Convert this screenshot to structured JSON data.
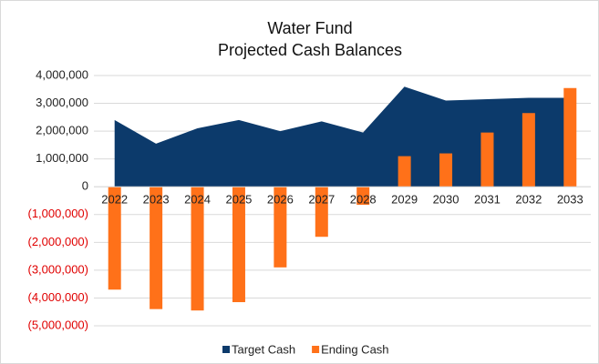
{
  "chart_data": {
    "type": "area-bar",
    "title": [
      "Water Fund",
      "Projected Cash Balances"
    ],
    "categories": [
      "2022",
      "2023",
      "2024",
      "2025",
      "2026",
      "2027",
      "2028",
      "2029",
      "2030",
      "2031",
      "2032",
      "2033"
    ],
    "series": [
      {
        "name": "Target Cash",
        "color": "#0c3a6b",
        "kind": "area",
        "values": [
          2400000,
          1550000,
          2100000,
          2400000,
          2000000,
          2350000,
          1950000,
          3600000,
          3100000,
          3150000,
          3200000,
          3200000
        ]
      },
      {
        "name": "Ending Cash",
        "color": "#ff7119",
        "kind": "bar",
        "values": [
          -3700000,
          -4400000,
          -4450000,
          -4150000,
          -2900000,
          -1800000,
          -650000,
          1100000,
          1200000,
          1950000,
          2650000,
          3550000
        ]
      }
    ],
    "ylim": [
      -5000000,
      4000000
    ],
    "yticks": [
      {
        "value": -5000000,
        "label": "(5,000,000)"
      },
      {
        "value": -4000000,
        "label": "(4,000,000)"
      },
      {
        "value": -3000000,
        "label": "(3,000,000)"
      },
      {
        "value": -2000000,
        "label": "(2,000,000)"
      },
      {
        "value": -1000000,
        "label": "(1,000,000)"
      },
      0,
      {
        "value": 1000000,
        "label": "1,000,000"
      },
      {
        "value": 2000000,
        "label": "2,000,000"
      },
      {
        "value": 3000000,
        "label": "3,000,000"
      },
      {
        "value": 4000000,
        "label": "4,000,000"
      }
    ],
    "negative_label_color": "#e00000",
    "grid": true,
    "legend": "bottom"
  }
}
